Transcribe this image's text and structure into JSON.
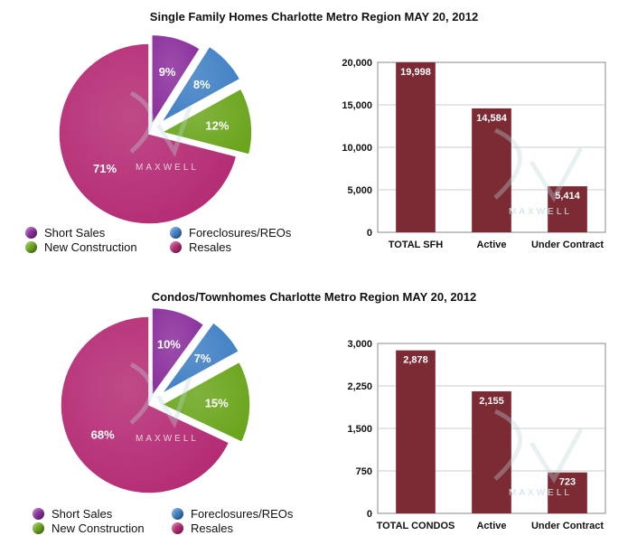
{
  "colors": {
    "short_sales": "#8a2e9c",
    "foreclosures": "#3f7fc4",
    "new_construction": "#6aa51c",
    "resales": "#b42a73",
    "bar": "#7c2a34",
    "grid": "#cccccc"
  },
  "legend": {
    "short_sales": "Short Sales",
    "foreclosures": "Foreclosures/REOs",
    "new_construction": "New Construction",
    "resales": "Resales"
  },
  "watermark": "MAXWELL",
  "chart_data": [
    {
      "type": "pie",
      "title": "Single Family Homes Charlotte Metro Region MAY 20, 2012",
      "categories": [
        "Short Sales",
        "Foreclosures/REOs",
        "New Construction",
        "Resales"
      ],
      "values": [
        9,
        8,
        12,
        71
      ],
      "labels": [
        "9%",
        "8%",
        "12%",
        "71%"
      ]
    },
    {
      "type": "bar",
      "title": "",
      "categories": [
        "TOTAL SFH",
        "Active",
        "Under Contract"
      ],
      "values": [
        19998,
        14584,
        5414
      ],
      "labels": [
        "19,998",
        "14,584",
        "5,414"
      ],
      "ylim": [
        0,
        20000
      ],
      "yticks": [
        "0",
        "5,000",
        "10,000",
        "15,000",
        "20,000"
      ],
      "ytick_values": [
        0,
        5000,
        10000,
        15000,
        20000
      ],
      "grid": true
    },
    {
      "type": "pie",
      "title": "Condos/Townhomes Charlotte Metro Region MAY 20, 2012",
      "categories": [
        "Short Sales",
        "Foreclosures/REOs",
        "New Construction",
        "Resales"
      ],
      "values": [
        10,
        7,
        15,
        68
      ],
      "labels": [
        "10%",
        "7%",
        "15%",
        "68%"
      ]
    },
    {
      "type": "bar",
      "title": "",
      "categories": [
        "TOTAL CONDOS",
        "Active",
        "Under Contract"
      ],
      "values": [
        2878,
        2155,
        723
      ],
      "labels": [
        "2,878",
        "2,155",
        "723"
      ],
      "ylim": [
        0,
        3000
      ],
      "yticks": [
        "0",
        "750",
        "1,500",
        "2,250",
        "3,000"
      ],
      "ytick_values": [
        0,
        750,
        1500,
        2250,
        3000
      ],
      "grid": true
    }
  ]
}
